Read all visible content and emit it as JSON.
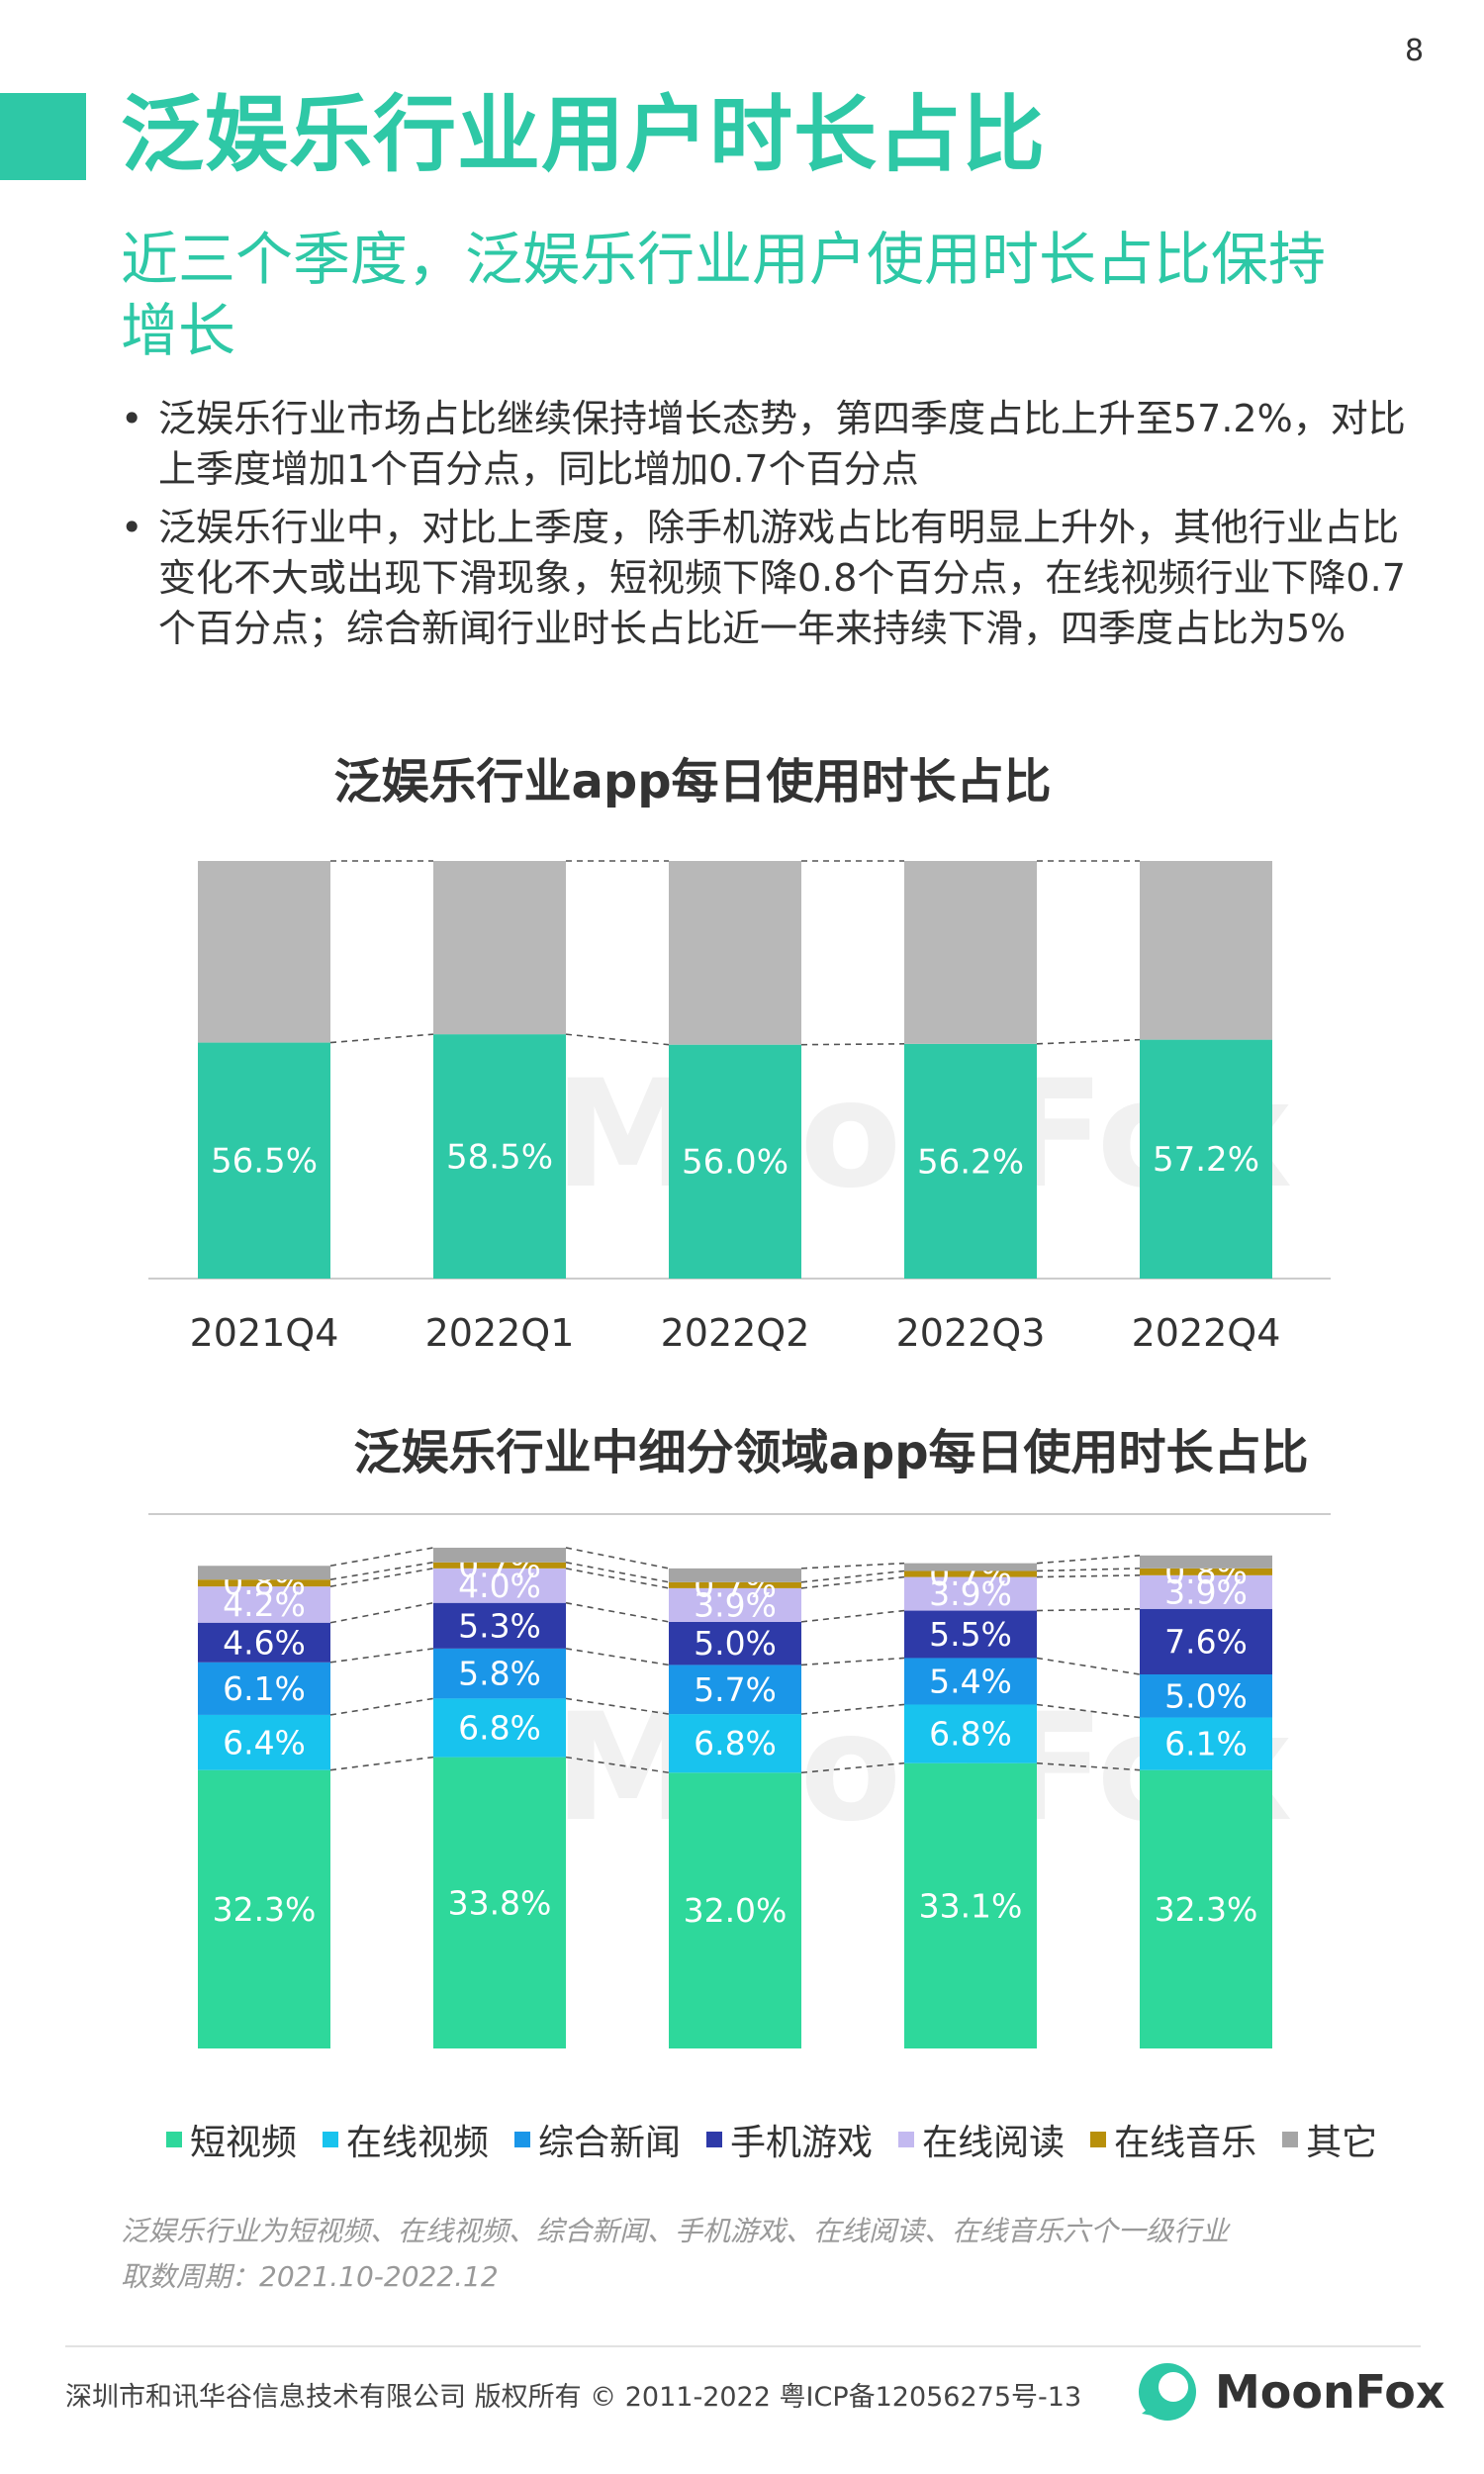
{
  "page_number": "8",
  "title": "泛娱乐行业用户时长占比",
  "subtitle": "近三个季度，泛娱乐行业用户使用时长占比保持增长",
  "bullets": [
    "泛娱乐行业市场占比继续保持增长态势，第四季度占比上升至57.2%，对比上季度增加1个百分点，同比增加0.7个百分点",
    "泛娱乐行业中，对比上季度，除手机游戏占比有明显上升外，其他行业占比变化不大或出现下滑现象，短视频下降0.8个百分点，在线视频行业下降0.7个百分点；综合新闻行业时长占比近一年来持续下滑，四季度占比为5%"
  ],
  "bullet_char": "•",
  "watermark": "MoonFox",
  "chart_data": [
    {
      "type": "bar",
      "stacked": true,
      "title": "泛娱乐行业app每日使用时长占比",
      "categories": [
        "2021Q4",
        "2022Q1",
        "2022Q2",
        "2022Q3",
        "2022Q4"
      ],
      "series": [
        {
          "values": [
            56.5,
            58.5,
            56.0,
            56.2,
            57.2
          ],
          "color": "#2ec8a6",
          "labels": [
            "56.5%",
            "58.5%",
            "56.0%",
            "56.2%",
            "57.2%"
          ]
        },
        {
          "values": [
            43.5,
            41.5,
            44.0,
            43.8,
            42.8
          ],
          "color": "#b8b8b8"
        }
      ],
      "ylim": [
        0,
        100
      ],
      "grid": false
    },
    {
      "type": "bar",
      "stacked": true,
      "title": "泛娱乐行业中细分领域app每日使用时长占比",
      "categories": [
        "2021Q4",
        "2022Q1",
        "2022Q2",
        "2022Q3",
        "2022Q4"
      ],
      "series": [
        {
          "name": "短视频",
          "color": "#2ed89b",
          "values": [
            32.3,
            33.8,
            32.0,
            33.1,
            32.3
          ],
          "labels": [
            "32.3%",
            "33.8%",
            "32.0%",
            "33.1%",
            "32.3%"
          ]
        },
        {
          "name": "在线视频",
          "color": "#18c3ee",
          "values": [
            6.4,
            6.8,
            6.8,
            6.8,
            6.1
          ],
          "labels": [
            "6.4%",
            "6.8%",
            "6.8%",
            "6.8%",
            "6.1%"
          ]
        },
        {
          "name": "综合新闻",
          "color": "#1a96e8",
          "values": [
            6.1,
            5.8,
            5.7,
            5.4,
            5.0
          ],
          "labels": [
            "6.1%",
            "5.8%",
            "5.7%",
            "5.4%",
            "5.0%"
          ]
        },
        {
          "name": "手机游戏",
          "color": "#2e3aa8",
          "values": [
            4.6,
            5.3,
            5.0,
            5.5,
            7.6
          ],
          "labels": [
            "4.6%",
            "5.3%",
            "5.0%",
            "5.5%",
            "7.6%"
          ]
        },
        {
          "name": "在线阅读",
          "color": "#c3b9f0",
          "values": [
            4.2,
            4.0,
            3.9,
            3.9,
            3.9
          ],
          "labels": [
            "4.2%",
            "4.0%",
            "3.9%",
            "3.9%",
            "3.9%"
          ]
        },
        {
          "name": "在线音乐",
          "color": "#b8900a",
          "values": [
            0.8,
            0.7,
            0.7,
            0.7,
            0.8
          ],
          "labels": [
            "0.8%",
            "0.7%",
            "0.7%",
            "0.7%",
            "0.8%"
          ]
        },
        {
          "name": "其它",
          "color": "#a5a5a5",
          "values": [
            1.6,
            1.7,
            1.6,
            0.9,
            1.5
          ]
        }
      ],
      "grid": false,
      "legend_position": "bottom"
    }
  ],
  "notes": [
    "泛娱乐行业为短视频、在线视频、综合新闻、手机游戏、在线阅读、在线音乐六个一级行业",
    "取数周期：2021.10-2022.12"
  ],
  "footer": {
    "copyright": "深圳市和讯华谷信息技术有限公司 版权所有 © 2011-2022 粤ICP备12056275号-13",
    "logo_text": "MoonFox"
  },
  "colors": {
    "accent": "#2ec8a6",
    "text": "#333333"
  }
}
